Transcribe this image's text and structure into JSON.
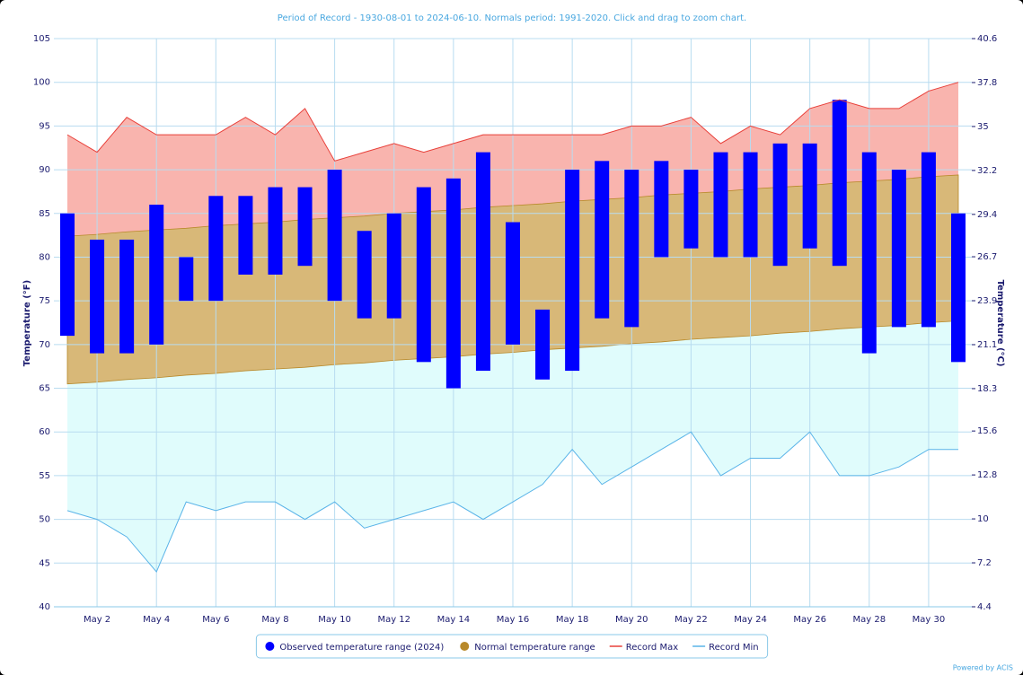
{
  "chart_data": {
    "type": "range",
    "title": "Period of Record - 1930-08-01 to 2024-06-10. Normals period: 1991-2020. Click and drag to zoom chart.",
    "ylabel": "Temperature (°F)",
    "y2label": "Temperature (°C)",
    "credit": "Powered by ACIS",
    "categories": [
      null,
      "May 2",
      null,
      "May 4",
      null,
      "May 6",
      null,
      "May 8",
      null,
      "May 10",
      null,
      "May 12",
      null,
      "May 14",
      null,
      "May 16",
      null,
      "May 18",
      null,
      "May 20",
      null,
      "May 22",
      null,
      "May 24",
      null,
      "May 26",
      null,
      "May 28",
      null,
      "May 30",
      null
    ],
    "ylim": [
      40,
      105
    ],
    "yticks": [
      40,
      45,
      50,
      55,
      60,
      65,
      70,
      75,
      80,
      85,
      90,
      95,
      100,
      105
    ],
    "y2lim": [
      4.4,
      40.6
    ],
    "y2ticks": [
      4.4,
      7.2,
      10,
      12.8,
      15.6,
      18.3,
      21.1,
      23.9,
      26.7,
      29.4,
      32.2,
      35,
      37.8,
      40.6
    ],
    "grid": true,
    "legend": "bottom",
    "series": [
      {
        "name": "Observed temperature range (2024)",
        "kind": "columnrange",
        "color": "#0000ff",
        "low": [
          71,
          69,
          69,
          70,
          75,
          75,
          78,
          78,
          79,
          75,
          73,
          73,
          68,
          65,
          67,
          70,
          66,
          67,
          73,
          72,
          80,
          81,
          80,
          80,
          79,
          81,
          79,
          69,
          72,
          72,
          68
        ],
        "high": [
          85,
          82,
          82,
          86,
          80,
          87,
          87,
          88,
          88,
          90,
          83,
          85,
          88,
          89,
          92,
          84,
          74,
          90,
          91,
          90,
          91,
          90,
          92,
          92,
          93,
          93,
          98,
          92,
          90,
          92,
          85
        ]
      },
      {
        "name": "Normal temperature range",
        "kind": "arearange",
        "color": "#b8892a",
        "low": [
          65.5,
          65.7,
          66.0,
          66.2,
          66.5,
          66.7,
          67.0,
          67.2,
          67.4,
          67.7,
          67.9,
          68.2,
          68.4,
          68.6,
          68.9,
          69.1,
          69.4,
          69.6,
          69.8,
          70.1,
          70.3,
          70.6,
          70.8,
          71.0,
          71.3,
          71.5,
          71.8,
          72.0,
          72.2,
          72.5,
          72.7
        ],
        "high": [
          82.4,
          82.6,
          82.9,
          83.1,
          83.3,
          83.6,
          83.8,
          84.0,
          84.3,
          84.5,
          84.7,
          85.0,
          85.2,
          85.4,
          85.7,
          85.9,
          86.1,
          86.4,
          86.6,
          86.8,
          87.1,
          87.3,
          87.5,
          87.8,
          88.0,
          88.2,
          88.5,
          88.7,
          88.9,
          89.2,
          89.4
        ]
      },
      {
        "name": "Record Max",
        "kind": "line",
        "color": "#e8403a",
        "values": [
          94,
          92,
          96,
          94,
          94,
          94,
          96,
          94,
          97,
          91,
          92,
          93,
          92,
          93,
          94,
          94,
          94,
          94,
          94,
          95,
          95,
          96,
          93,
          95,
          94,
          97,
          98,
          97,
          97,
          99,
          100
        ]
      },
      {
        "name": "Record Min",
        "kind": "line",
        "color": "#5ab4e8",
        "values": [
          51,
          50,
          48,
          44,
          52,
          51,
          52,
          52,
          50,
          52,
          49,
          50,
          51,
          52,
          50,
          52,
          54,
          58,
          54,
          56,
          58,
          60,
          55,
          57,
          57,
          60,
          55,
          55,
          56,
          58,
          58
        ]
      }
    ]
  }
}
